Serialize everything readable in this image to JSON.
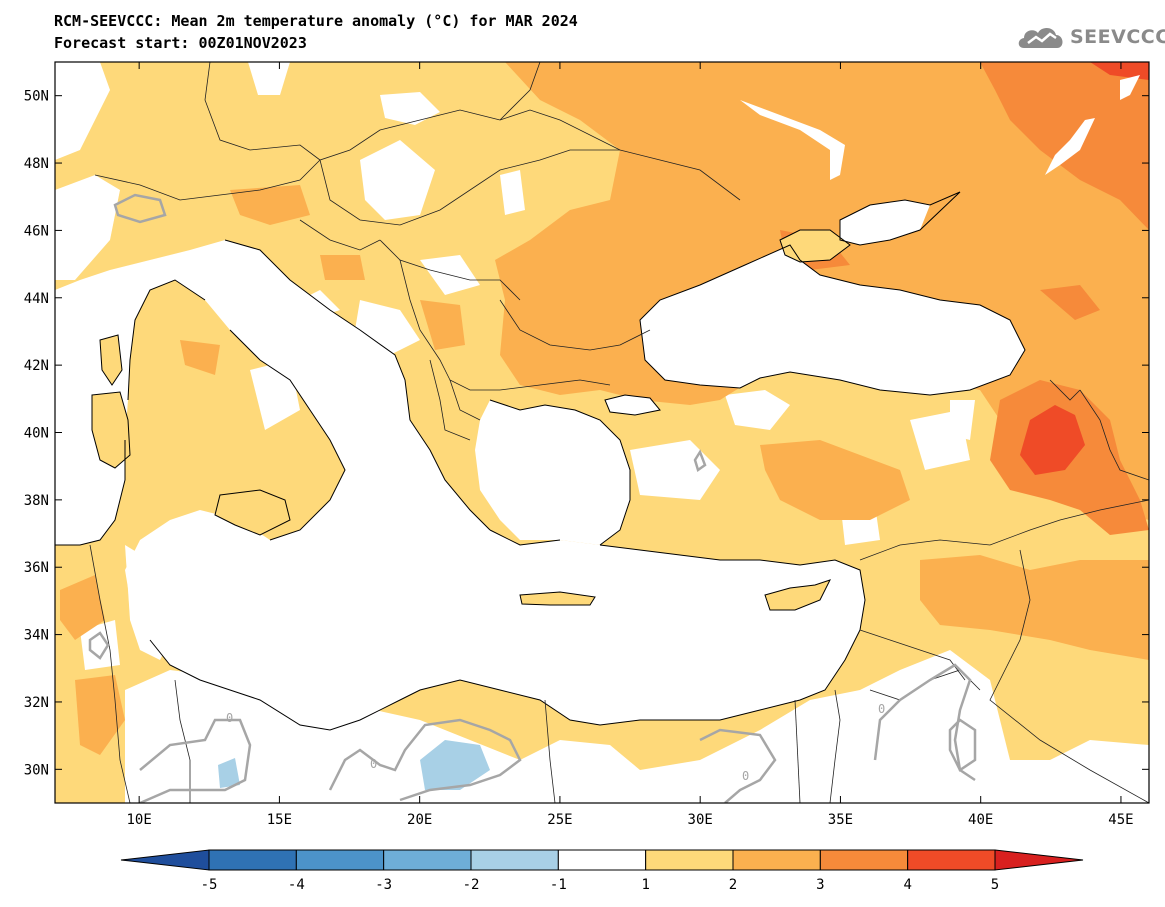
{
  "title": {
    "line1": "RCM-SEEVCCC: Mean 2m temperature anomaly (°C) for MAR 2024",
    "line2": "Forecast start: 00Z01NOV2023"
  },
  "logo": {
    "text": "SEEVCCC",
    "icon": "cloud-icon"
  },
  "axes": {
    "lat_labels": [
      "50N",
      "48N",
      "46N",
      "44N",
      "42N",
      "40N",
      "38N",
      "36N",
      "34N",
      "32N",
      "30N"
    ],
    "lon_labels": [
      "10E",
      "15E",
      "20E",
      "25E",
      "30E",
      "35E",
      "40E",
      "45E"
    ],
    "lat_values": [
      50,
      48,
      46,
      44,
      42,
      40,
      38,
      36,
      34,
      32,
      30
    ],
    "lon_values": [
      10,
      15,
      20,
      25,
      30,
      35,
      40,
      45
    ],
    "lon_range": [
      7,
      46
    ],
    "lat_range": [
      29,
      51
    ]
  },
  "contour_labels": [
    "0",
    "0",
    "0",
    "0",
    "0"
  ],
  "colorbar": {
    "labels": [
      "-5",
      "-4",
      "-3",
      "-2",
      "-1",
      "1",
      "2",
      "3",
      "4",
      "5"
    ],
    "colors": [
      "#1f4e9c",
      "#2f72b4",
      "#4c93c9",
      "#6eaed8",
      "#a8d0e6",
      "#ffffff",
      "#fed97a",
      "#fbb04f",
      "#f68a3a",
      "#ef4b27",
      "#d8201f"
    ]
  }
}
